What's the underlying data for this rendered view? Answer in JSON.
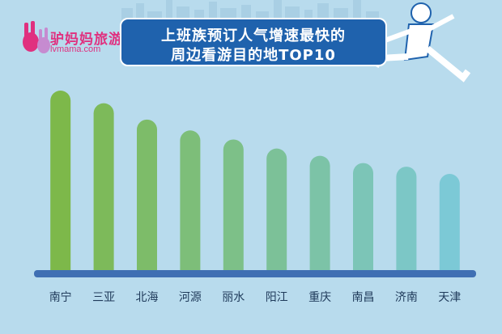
{
  "brand": {
    "name": "驴妈妈旅游",
    "url": "lvmama.com"
  },
  "chart_data": {
    "type": "bar",
    "title_lines": [
      "上班族预订人气增速最快的",
      "周边看游目的地TOP10"
    ],
    "categories": [
      "南宁",
      "三亚",
      "北海",
      "河源",
      "丽水",
      "阳江",
      "重庆",
      "南昌",
      "济南",
      "天津"
    ],
    "values": [
      100,
      93,
      84,
      78,
      73,
      68,
      64,
      60,
      58,
      54
    ],
    "ylim": [
      0,
      100
    ],
    "grid": false,
    "legend": "none",
    "colors": {
      "start": "#7db84a",
      "end": "#7cc9d6",
      "axis": "#3f6fb3",
      "background": "#b8dbed",
      "title_bg": "#1f62ad"
    }
  }
}
